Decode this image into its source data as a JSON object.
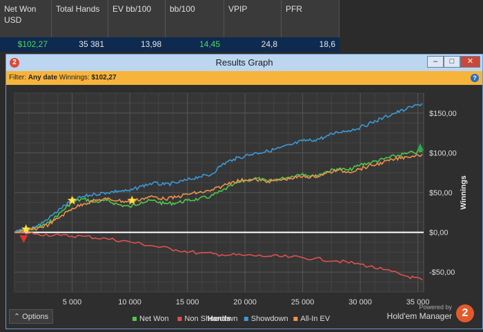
{
  "stats": {
    "headers": [
      "Net Won USD",
      "Total Hands",
      "EV bb/100",
      "bb/100",
      "VPIP",
      "PFR"
    ],
    "values": [
      "$102,27",
      "35 381",
      "13,98",
      "14,45",
      "24,8",
      "18,6"
    ],
    "value_colors": [
      "#4cd964",
      "#e8e8e8",
      "#e8e8e8",
      "#4cd964",
      "#e8e8e8",
      "#e8e8e8"
    ]
  },
  "window": {
    "title": "Results Graph",
    "logo_text": "2",
    "minimize": "–",
    "maximize": "□",
    "close": "✕"
  },
  "filter": {
    "label": "Filter:",
    "date": "Any date",
    "winnings_label": "Winnings:",
    "winnings_value": "$102,27",
    "help": "?"
  },
  "chart_data": {
    "type": "line",
    "xlabel": "Hands",
    "ylabel": "Winnings",
    "xlim": [
      0,
      35500
    ],
    "ylim": [
      -75,
      175
    ],
    "x_ticks": [
      5000,
      10000,
      15000,
      20000,
      25000,
      30000,
      35000
    ],
    "x_tick_labels": [
      "5 000",
      "10 000",
      "15 000",
      "20 000",
      "25 000",
      "30 000",
      "35 000"
    ],
    "y_ticks": [
      150,
      100,
      50,
      0,
      -50
    ],
    "y_tick_labels": [
      "$150,00",
      "$100,00",
      "$50,00",
      "$0,00",
      "-$50,00"
    ],
    "grid": true,
    "legend_position": "bottom",
    "series": [
      {
        "name": "Net Won",
        "color": "#4cc94c",
        "x": [
          0,
          1000,
          2000,
          3000,
          4000,
          5000,
          6000,
          7000,
          8000,
          9000,
          10000,
          11000,
          12000,
          13000,
          14000,
          15000,
          16000,
          17000,
          18000,
          19000,
          20000,
          21000,
          22000,
          23000,
          24000,
          25000,
          26000,
          27000,
          28000,
          29000,
          30000,
          31000,
          32000,
          33000,
          34000,
          35381
        ],
        "y": [
          0,
          2,
          6,
          12,
          25,
          38,
          42,
          38,
          40,
          35,
          32,
          38,
          40,
          36,
          37,
          40,
          42,
          45,
          52,
          60,
          65,
          68,
          64,
          67,
          70,
          74,
          70,
          76,
          80,
          78,
          85,
          88,
          92,
          96,
          99,
          102
        ]
      },
      {
        "name": "Non Showdown",
        "color": "#e05050",
        "x": [
          0,
          2000,
          4000,
          6000,
          8000,
          10000,
          12000,
          14000,
          16000,
          18000,
          20000,
          22000,
          24000,
          26000,
          28000,
          30000,
          32000,
          34000,
          35381
        ],
        "y": [
          0,
          -2,
          -4,
          -5,
          -8,
          -12,
          -17,
          -22,
          -26,
          -28,
          -29,
          -30,
          -31,
          -33,
          -36,
          -40,
          -47,
          -55,
          -60
        ]
      },
      {
        "name": "Showdown",
        "color": "#3c9ad8",
        "x": [
          0,
          1000,
          2000,
          3000,
          4000,
          5000,
          6000,
          7000,
          8000,
          9000,
          10000,
          11000,
          12000,
          13000,
          14000,
          15000,
          16000,
          17000,
          18000,
          19000,
          20000,
          21000,
          22000,
          23000,
          24000,
          25000,
          26000,
          27000,
          28000,
          29000,
          30000,
          31000,
          32000,
          33000,
          34000,
          35381
        ],
        "y": [
          0,
          4,
          8,
          18,
          30,
          40,
          45,
          48,
          50,
          52,
          52,
          58,
          62,
          60,
          62,
          66,
          70,
          72,
          85,
          92,
          96,
          100,
          102,
          106,
          110,
          115,
          116,
          120,
          126,
          128,
          132,
          138,
          144,
          150,
          155,
          162
        ]
      },
      {
        "name": "All-In EV",
        "color": "#f0924a",
        "x": [
          0,
          1000,
          2000,
          3000,
          4000,
          5000,
          6000,
          7000,
          8000,
          9000,
          10000,
          11000,
          12000,
          13000,
          14000,
          15000,
          16000,
          17000,
          18000,
          19000,
          20000,
          21000,
          22000,
          23000,
          24000,
          25000,
          26000,
          27000,
          28000,
          29000,
          30000,
          31000,
          32000,
          33000,
          34000,
          35381
        ],
        "y": [
          0,
          2,
          5,
          10,
          20,
          30,
          36,
          40,
          42,
          40,
          38,
          42,
          45,
          42,
          44,
          48,
          50,
          52,
          58,
          64,
          66,
          66,
          64,
          66,
          68,
          70,
          70,
          74,
          78,
          76,
          80,
          84,
          88,
          92,
          95,
          98
        ]
      }
    ],
    "markers": [
      {
        "type": "star",
        "color": "#ffe14d",
        "x": 1000,
        "y": 4
      },
      {
        "type": "star",
        "color": "#ffe14d",
        "x": 5000,
        "y": 40
      },
      {
        "type": "star",
        "color": "#ffe14d",
        "x": 10200,
        "y": 40
      },
      {
        "type": "triangle-down",
        "color": "#e03030",
        "x": 800,
        "y": -8
      },
      {
        "type": "triangle-up",
        "color": "#2aa84a",
        "x": 35200,
        "y": 107
      }
    ]
  },
  "footer": {
    "options_label": "Options",
    "powered_by": "Powered by",
    "brand": "Hold'em Manager",
    "logo_text": "2"
  }
}
